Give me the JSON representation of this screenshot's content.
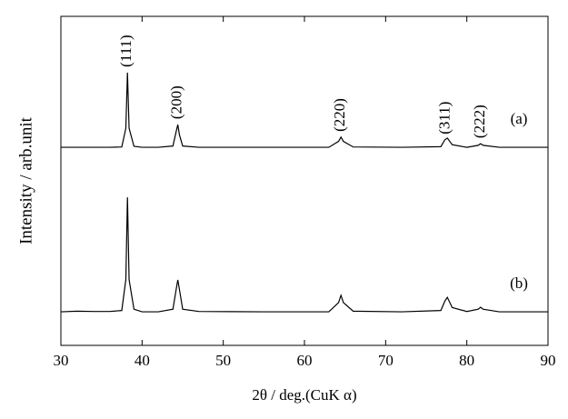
{
  "chart_data": {
    "type": "line",
    "xlabel": "2θ / deg.(CuK α)",
    "ylabel": "Intensity / arb.unit",
    "x": [
      30,
      32,
      34,
      36,
      37.5,
      38.0,
      38.2,
      38.4,
      39,
      40,
      42,
      43.8,
      44.2,
      44.4,
      44.6,
      45,
      47,
      55,
      63,
      64.2,
      64.5,
      64.8,
      66,
      72,
      76.8,
      77.3,
      77.6,
      78.2,
      80,
      81.4,
      81.7,
      82,
      84,
      90
    ],
    "series": [
      {
        "name": "(a)",
        "color": "#000000",
        "values": [
          60.2,
          60.2,
          60.2,
          60.2,
          60.3,
          66,
          82.9,
          66,
          60.5,
          60.2,
          60.2,
          60.6,
          65,
          67.1,
          64,
          60.6,
          60.2,
          60.2,
          60.2,
          62,
          63.3,
          62,
          60.3,
          60.2,
          60.4,
          62.5,
          63,
          61,
          60.2,
          60.8,
          61.3,
          60.8,
          60.2,
          60.2
        ]
      },
      {
        "name": "(b)",
        "color": "#000000",
        "values": [
          10.2,
          10.4,
          10.3,
          10.3,
          10.6,
          20,
          45,
          20,
          11,
          10.2,
          10.2,
          11,
          17,
          19.9,
          17,
          11,
          10.3,
          10.2,
          10.2,
          13,
          15.2,
          13,
          10.4,
          10.2,
          10.6,
          13.5,
          14.6,
          11.5,
          10.3,
          11,
          11.6,
          11,
          10.2,
          10.2
        ]
      }
    ],
    "peak_labels": [
      {
        "text": "(111)",
        "x": 38.2
      },
      {
        "text": "(200)",
        "x": 44.4
      },
      {
        "text": "(220)",
        "x": 64.5
      },
      {
        "text": "(311)",
        "x": 77.4
      },
      {
        "text": "(222)",
        "x": 81.7
      }
    ],
    "xlim": [
      30,
      90
    ],
    "xticks": [
      30,
      40,
      50,
      60,
      70,
      80,
      90
    ],
    "ylim": [
      0,
      100
    ]
  }
}
